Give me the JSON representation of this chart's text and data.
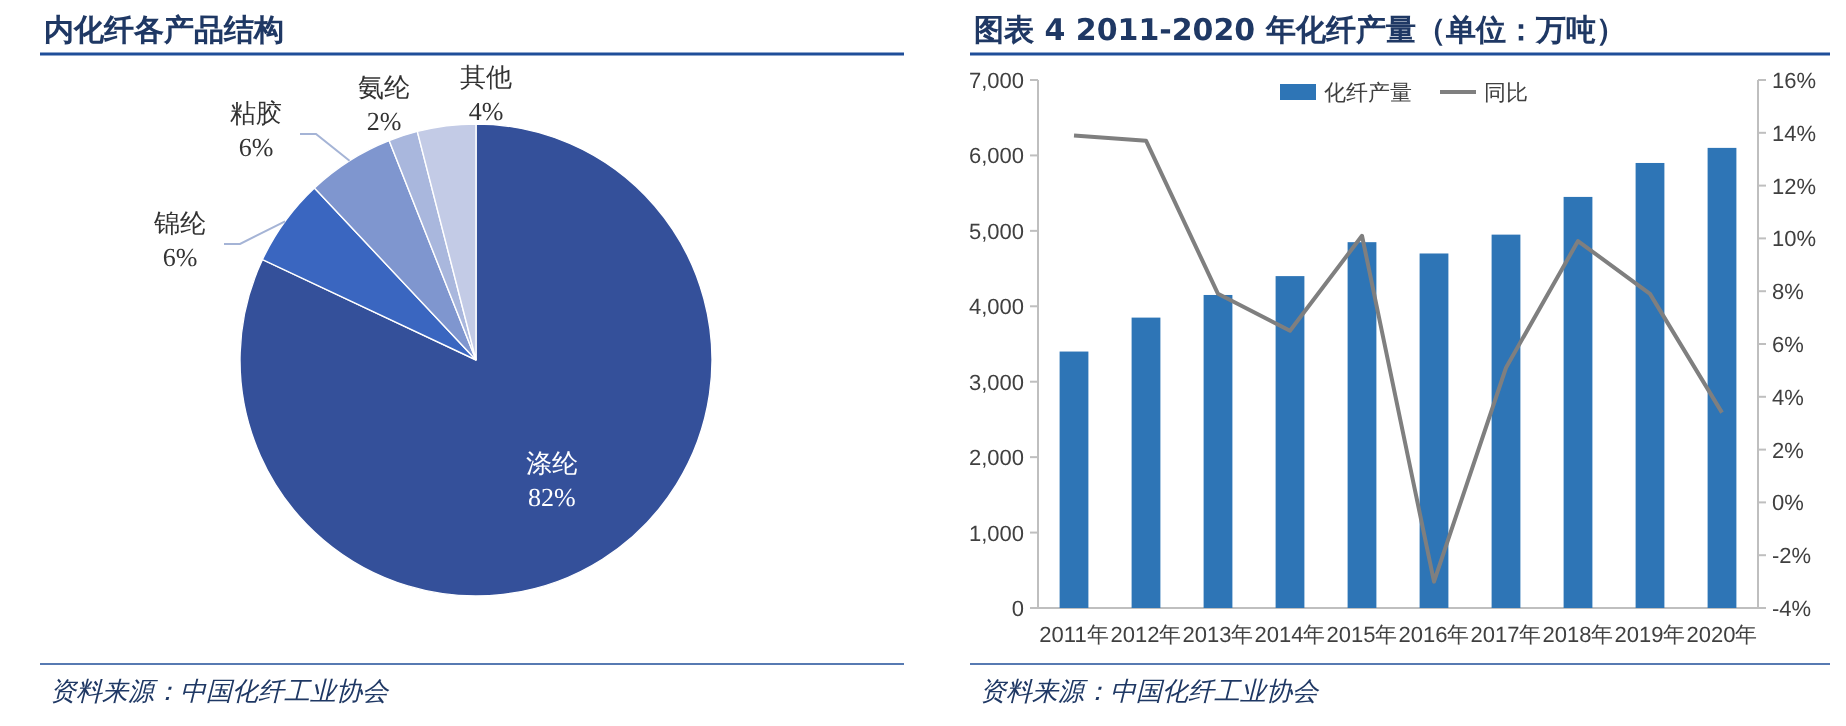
{
  "chart_data": [
    {
      "type": "pie",
      "title": "内化纤各产品结构",
      "categories": [
        "涤纶",
        "锦纶",
        "粘胶",
        "氨纶",
        "其他"
      ],
      "values": [
        82,
        6,
        6,
        2,
        4
      ],
      "colors": [
        "#34509a",
        "#3a66c0",
        "#7f96cf",
        "#a9b7dd",
        "#c3cbe6"
      ],
      "value_labels": [
        "82%",
        "6%",
        "6%",
        "2%",
        "4%"
      ],
      "annotations": [
        "资料来源：中国化纤工业协会"
      ]
    },
    {
      "type": "bar",
      "title": "图表 4  2011-2020 年化纤产量（单位：万吨）",
      "categories": [
        "2011年",
        "2012年",
        "2013年",
        "2014年",
        "2015年",
        "2016年",
        "2017年",
        "2018年",
        "2019年",
        "2020年"
      ],
      "series": [
        {
          "name": "化纤产量",
          "color": "#2e75b6",
          "values": [
            3400,
            3850,
            4150,
            4400,
            4850,
            4700,
            4950,
            5450,
            5900,
            6100
          ]
        },
        {
          "name": "同比",
          "type": "line",
          "axis": "y2",
          "color": "#7f7f7f",
          "values": [
            13.9,
            13.7,
            7.9,
            6.5,
            10.1,
            -3.0,
            5.1,
            9.9,
            7.9,
            3.4
          ]
        }
      ],
      "ylim": [
        0,
        7000
      ],
      "yticks": [
        0,
        {
          "value": 1000,
          "label": "1,000"
        },
        {
          "value": 2000,
          "label": "2,000"
        },
        {
          "value": 3000,
          "label": "3,000"
        },
        {
          "value": 4000,
          "label": "4,000"
        },
        {
          "value": 5000,
          "label": "5,000"
        },
        {
          "value": 6000,
          "label": "6,000"
        },
        {
          "value": 7000,
          "label": "7,000"
        }
      ],
      "y2lim": [
        -4,
        16
      ],
      "y2ticks": [
        {
          "value": -4,
          "label": "-4%"
        },
        {
          "value": -2,
          "label": "-2%"
        },
        {
          "value": 0,
          "label": "0%"
        },
        {
          "value": 2,
          "label": "2%"
        },
        {
          "value": 4,
          "label": "4%"
        },
        {
          "value": 6,
          "label": "6%"
        },
        {
          "value": 8,
          "label": "8%"
        },
        {
          "value": 10,
          "label": "10%"
        },
        {
          "value": 12,
          "label": "12%"
        },
        {
          "value": 14,
          "label": "14%"
        },
        {
          "value": 16,
          "label": "16%"
        }
      ],
      "legend": "top",
      "annotations": [
        "资料来源：中国化纤工业协会"
      ]
    }
  ]
}
